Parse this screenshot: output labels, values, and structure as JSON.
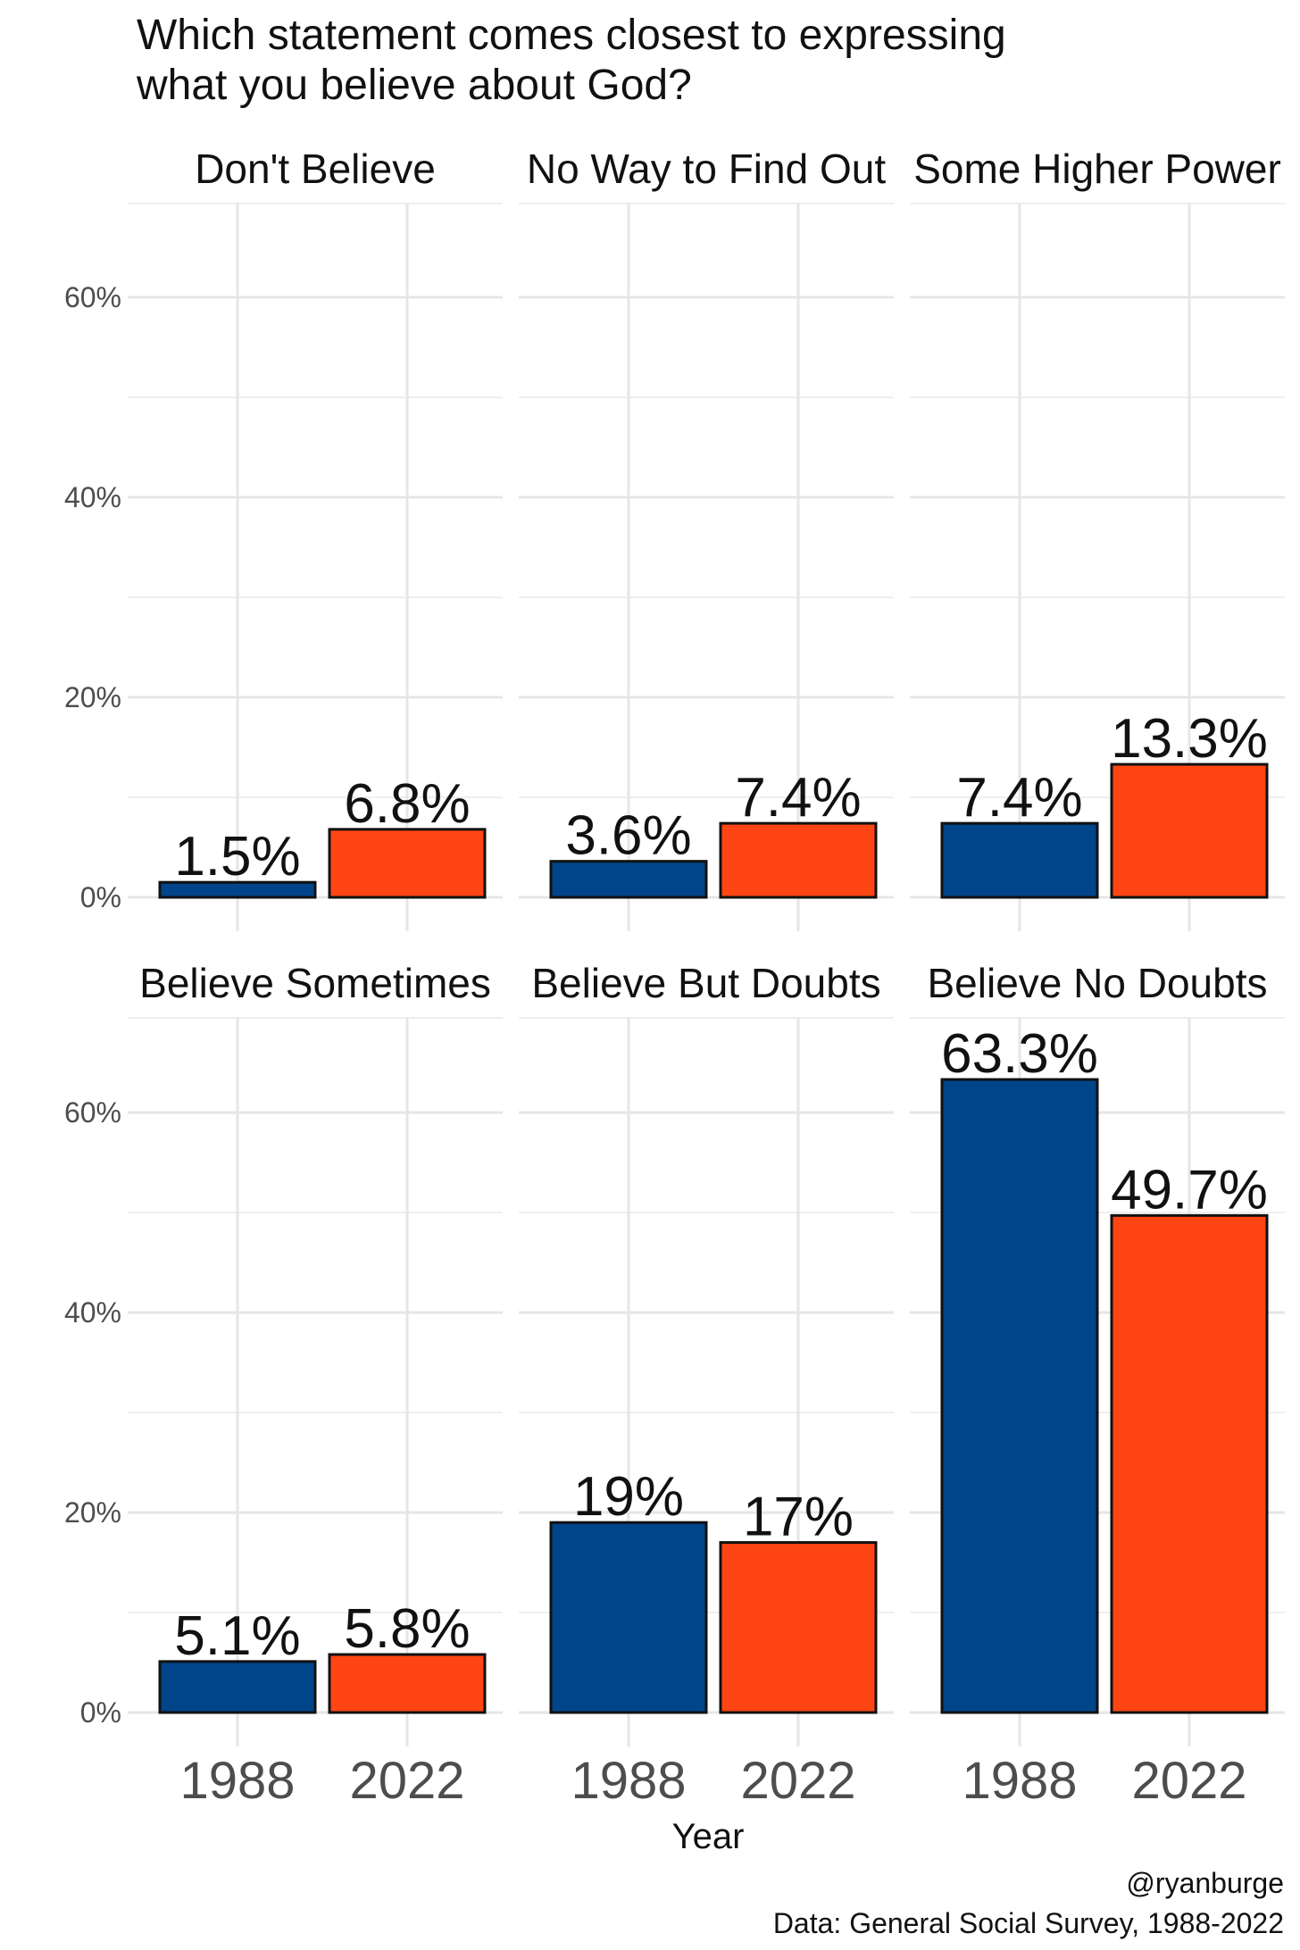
{
  "chart_data": {
    "type": "bar",
    "title_lines": [
      "Which statement comes closest to expressing",
      "what you believe about God?"
    ],
    "xlabel": "Year",
    "ylabel": "",
    "ylim": [
      0,
      70
    ],
    "y_ticks": [
      0,
      20,
      40,
      60
    ],
    "y_tick_labels": [
      "0%",
      "20%",
      "40%",
      "60%"
    ],
    "categories": [
      "1988",
      "2022"
    ],
    "colors": {
      "1988": "#00458a",
      "2022": "#ff4513"
    },
    "grid": true,
    "facets": [
      {
        "label": "Don't Believe",
        "values": [
          1.5,
          6.8
        ],
        "value_labels": [
          "1.5%",
          "6.8%"
        ]
      },
      {
        "label": "No Way to Find Out",
        "values": [
          3.6,
          7.4
        ],
        "value_labels": [
          "3.6%",
          "7.4%"
        ]
      },
      {
        "label": "Some Higher Power",
        "values": [
          7.4,
          13.3
        ],
        "value_labels": [
          "7.4%",
          "13.3%"
        ]
      },
      {
        "label": "Believe Sometimes",
        "values": [
          5.1,
          5.8
        ],
        "value_labels": [
          "5.1%",
          "5.8%"
        ]
      },
      {
        "label": "Believe But Doubts",
        "values": [
          19,
          17
        ],
        "value_labels": [
          "19%",
          "17%"
        ]
      },
      {
        "label": "Believe No Doubts",
        "values": [
          63.3,
          49.7
        ],
        "value_labels": [
          "63.3%",
          "49.7%"
        ]
      }
    ],
    "caption_lines": [
      "@ryanburge",
      "Data: General Social Survey, 1988-2022"
    ]
  }
}
